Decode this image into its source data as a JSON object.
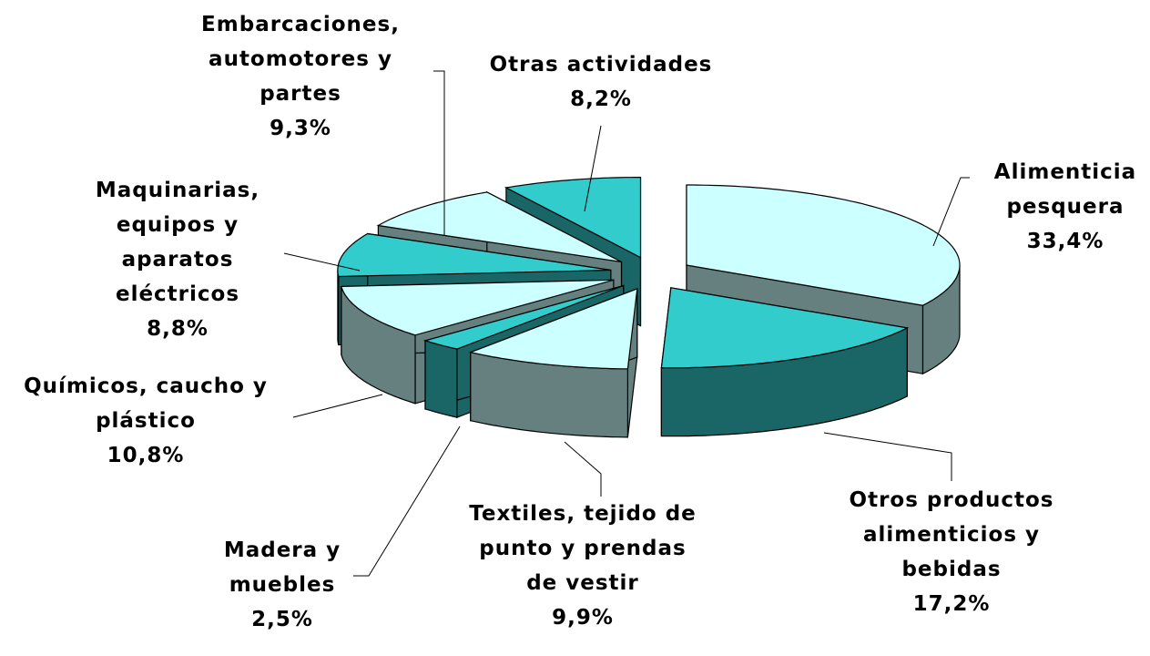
{
  "chart_data": {
    "type": "pie",
    "categories": [
      "Alimenticia pesquera",
      "Otros productos alimenticios y bebidas",
      "Textiles, tejido de punto y prendas de vestir",
      "Madera y muebles",
      "Químicos, caucho y plástico",
      "Maquinarias, equipos y aparatos eléctricos",
      "Embarcaciones, automotores y partes",
      "Otras actividades"
    ],
    "values": [
      33.4,
      17.2,
      9.9,
      2.5,
      10.8,
      8.8,
      9.3,
      8.2
    ],
    "value_labels": [
      "33,4%",
      "17,2%",
      "9,9%",
      "2,5%",
      "10,8%",
      "8,8%",
      "9,3%",
      "8,2%"
    ],
    "colors": [
      "#ccffff",
      "#33cccc",
      "#ccffff",
      "#33cccc",
      "#ccffff",
      "#33cccc",
      "#ccffff",
      "#33cccc"
    ],
    "side_colors": [
      "#668080",
      "#1a6666",
      "#668080",
      "#1a6666",
      "#668080",
      "#1a6666",
      "#668080",
      "#1a6666"
    ]
  }
}
